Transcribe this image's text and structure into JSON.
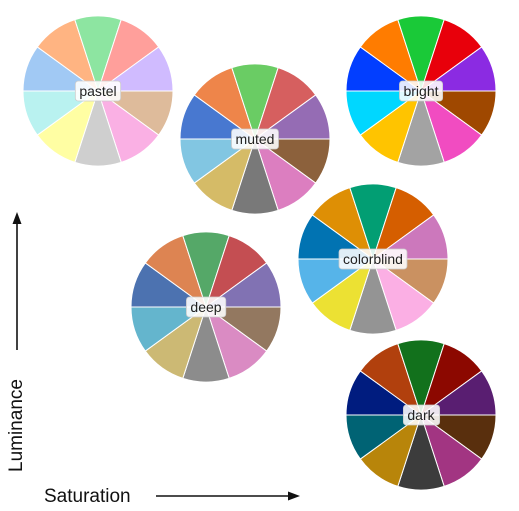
{
  "axes": {
    "x_label": "Saturation",
    "y_label": "Luminance"
  },
  "palettes": [
    {
      "name": "pastel",
      "colors": [
        "#a1c9f4",
        "#ffb482",
        "#8de5a1",
        "#ff9f9b",
        "#d0bbff",
        "#debb9b",
        "#fab0e4",
        "#cfcfcf",
        "#fffea3",
        "#b9f2f0"
      ]
    },
    {
      "name": "muted",
      "colors": [
        "#4878d0",
        "#ee854a",
        "#6acc64",
        "#d65f5f",
        "#956cb4",
        "#8c613c",
        "#dc7ec0",
        "#797979",
        "#d5bb67",
        "#82c6e2"
      ]
    },
    {
      "name": "bright",
      "colors": [
        "#023eff",
        "#ff7c00",
        "#1ac938",
        "#e8000b",
        "#8b2be2",
        "#9f4800",
        "#f14cc1",
        "#a3a3a3",
        "#ffc400",
        "#00d7ff"
      ]
    },
    {
      "name": "colorblind",
      "colors": [
        "#0173b2",
        "#de8f05",
        "#029e73",
        "#d55e00",
        "#cc78bc",
        "#ca9161",
        "#fbafe4",
        "#949494",
        "#ece133",
        "#56b4e9"
      ]
    },
    {
      "name": "deep",
      "colors": [
        "#4c72b0",
        "#dd8452",
        "#55a868",
        "#c44e52",
        "#8172b3",
        "#937860",
        "#da8bc3",
        "#8c8c8c",
        "#ccb974",
        "#64b5cd"
      ]
    },
    {
      "name": "dark",
      "colors": [
        "#001c7f",
        "#b1400d",
        "#12711c",
        "#8c0800",
        "#591e71",
        "#592f0d",
        "#a23582",
        "#3c3c3c",
        "#b8850a",
        "#006374"
      ]
    }
  ]
}
